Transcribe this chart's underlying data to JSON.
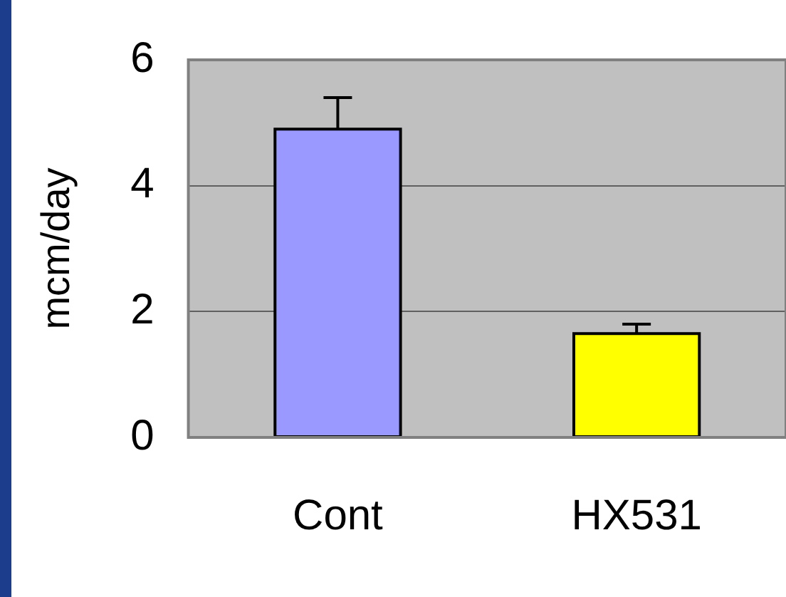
{
  "chart_data": {
    "type": "bar",
    "ylabel": "mcm/day",
    "categories": [
      "Cont",
      "HX531"
    ],
    "values": [
      4.9,
      1.65
    ],
    "errors": [
      0.5,
      0.15
    ],
    "colors": [
      "#9999ff",
      "#ffff00"
    ],
    "ylim": [
      0,
      6
    ],
    "yticks": [
      0,
      2,
      4,
      6
    ],
    "grid": "y",
    "legend": false
  }
}
